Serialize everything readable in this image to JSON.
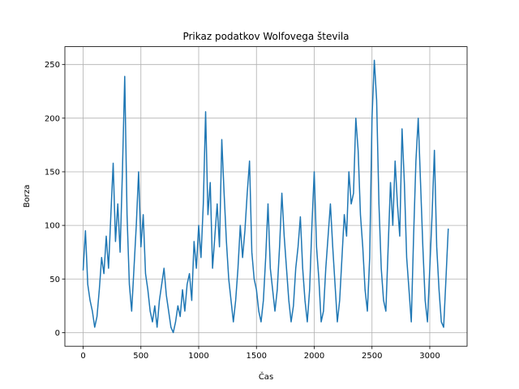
{
  "chart_data": {
    "type": "line",
    "title": "Prikaz podatkov Wolfovega števila",
    "xlabel": "Čas",
    "ylabel": "Borza",
    "color": "#1f77b4",
    "grid": true,
    "xlim": [
      -158,
      3323
    ],
    "ylim": [
      -12.7,
      266.7
    ],
    "xticks": [
      0,
      500,
      1000,
      1500,
      2000,
      2500,
      3000
    ],
    "yticks": [
      0,
      50,
      100,
      150,
      200,
      250
    ],
    "x": [
      0,
      20,
      40,
      60,
      80,
      100,
      120,
      140,
      160,
      180,
      200,
      220,
      240,
      260,
      280,
      300,
      320,
      340,
      360,
      380,
      400,
      420,
      440,
      460,
      480,
      500,
      520,
      540,
      560,
      580,
      600,
      620,
      640,
      660,
      680,
      700,
      720,
      740,
      760,
      780,
      800,
      820,
      840,
      860,
      880,
      900,
      920,
      940,
      960,
      980,
      1000,
      1020,
      1040,
      1060,
      1080,
      1100,
      1120,
      1140,
      1160,
      1180,
      1200,
      1220,
      1240,
      1260,
      1280,
      1300,
      1320,
      1340,
      1360,
      1380,
      1400,
      1420,
      1440,
      1460,
      1480,
      1500,
      1520,
      1540,
      1560,
      1580,
      1600,
      1620,
      1640,
      1660,
      1680,
      1700,
      1720,
      1740,
      1760,
      1780,
      1800,
      1820,
      1840,
      1860,
      1880,
      1900,
      1920,
      1940,
      1960,
      1980,
      2000,
      2020,
      2040,
      2060,
      2080,
      2100,
      2120,
      2140,
      2160,
      2180,
      2200,
      2220,
      2240,
      2260,
      2280,
      2300,
      2320,
      2340,
      2360,
      2380,
      2400,
      2420,
      2440,
      2460,
      2480,
      2500,
      2520,
      2540,
      2560,
      2580,
      2600,
      2620,
      2640,
      2660,
      2680,
      2700,
      2720,
      2740,
      2760,
      2780,
      2800,
      2820,
      2840,
      2860,
      2880,
      2900,
      2920,
      2940,
      2960,
      2980,
      3000,
      3020,
      3040,
      3060,
      3080,
      3100,
      3120,
      3140,
      3160
    ],
    "values": [
      58,
      95,
      45,
      30,
      20,
      5,
      15,
      40,
      70,
      55,
      90,
      60,
      110,
      158,
      85,
      120,
      75,
      150,
      239,
      110,
      45,
      20,
      60,
      100,
      150,
      80,
      110,
      55,
      40,
      20,
      10,
      25,
      5,
      30,
      45,
      60,
      35,
      20,
      5,
      0,
      10,
      25,
      15,
      40,
      20,
      45,
      55,
      30,
      85,
      60,
      100,
      70,
      120,
      206,
      110,
      140,
      60,
      90,
      120,
      80,
      180,
      130,
      85,
      50,
      30,
      10,
      30,
      60,
      100,
      70,
      95,
      130,
      160,
      75,
      50,
      40,
      20,
      10,
      30,
      70,
      120,
      60,
      40,
      20,
      40,
      80,
      130,
      90,
      60,
      30,
      10,
      25,
      60,
      80,
      108,
      60,
      30,
      10,
      40,
      100,
      150,
      80,
      50,
      10,
      20,
      60,
      90,
      120,
      80,
      45,
      10,
      30,
      70,
      110,
      90,
      150,
      120,
      130,
      200,
      170,
      110,
      80,
      40,
      20,
      70,
      200,
      254,
      217,
      120,
      60,
      30,
      20,
      80,
      140,
      100,
      160,
      120,
      90,
      190,
      140,
      70,
      40,
      10,
      90,
      160,
      200,
      140,
      80,
      30,
      10,
      60,
      110,
      170,
      80,
      40,
      10,
      5,
      50,
      97
    ]
  }
}
